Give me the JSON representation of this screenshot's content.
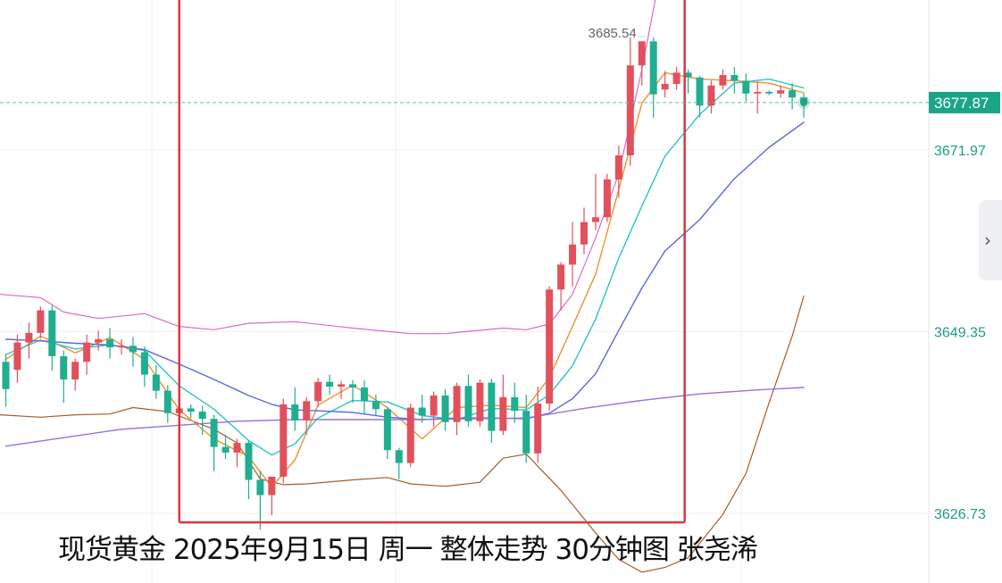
{
  "chart_data": {
    "type": "candlestick",
    "instrument": "现货黄金",
    "timeframe": "30分钟",
    "y_ticks": [
      "3671.97",
      "3649.35",
      "3626.73"
    ],
    "y_tick_values": [
      3671.97,
      3649.35,
      3626.73
    ],
    "current_price": "3677.87",
    "current_price_value": 3677.87,
    "high_annotation": "3685.54",
    "high_annotation_value": 3685.54,
    "ylim": [
      3620.0,
      3692.0
    ],
    "candles": [
      [
        3645.6,
        3646.5,
        3640.0,
        3642.2
      ],
      [
        3644.6,
        3649.0,
        3643.0,
        3648.0
      ],
      [
        3648.0,
        3650.5,
        3646.0,
        3649.2
      ],
      [
        3649.2,
        3652.5,
        3648.5,
        3652.0
      ],
      [
        3652.0,
        3652.6,
        3644.5,
        3646.3
      ],
      [
        3646.3,
        3647.0,
        3640.5,
        3643.4
      ],
      [
        3643.4,
        3646.0,
        3642.0,
        3645.6
      ],
      [
        3645.6,
        3649.0,
        3644.0,
        3648.0
      ],
      [
        3648.0,
        3649.5,
        3647.0,
        3648.4
      ],
      [
        3648.4,
        3649.8,
        3646.0,
        3647.4
      ],
      [
        3647.4,
        3648.4,
        3646.5,
        3647.6
      ],
      [
        3647.6,
        3648.7,
        3645.0,
        3646.8
      ],
      [
        3646.8,
        3647.5,
        3642.5,
        3644.0
      ],
      [
        3644.0,
        3645.2,
        3641.0,
        3642.0
      ],
      [
        3642.0,
        3642.7,
        3638.0,
        3639.2
      ],
      [
        3639.2,
        3640.6,
        3638.0,
        3639.8
      ],
      [
        3639.8,
        3640.3,
        3638.6,
        3639.4
      ],
      [
        3639.4,
        3640.1,
        3636.5,
        3638.5
      ],
      [
        3638.5,
        3639.0,
        3632.0,
        3635.0
      ],
      [
        3635.0,
        3636.5,
        3633.5,
        3634.3
      ],
      [
        3634.3,
        3636.0,
        3632.5,
        3635.5
      ],
      [
        3635.5,
        3635.8,
        3628.5,
        3630.9
      ],
      [
        3630.9,
        3632.0,
        3624.7,
        3629.0
      ],
      [
        3629.0,
        3631.2,
        3626.5,
        3631.3
      ],
      [
        3631.3,
        3641.0,
        3630.5,
        3640.3
      ],
      [
        3640.3,
        3642.4,
        3637.0,
        3638.3
      ],
      [
        3638.3,
        3641.2,
        3636.5,
        3640.7
      ],
      [
        3640.7,
        3643.6,
        3640.0,
        3643.1
      ],
      [
        3643.1,
        3644.0,
        3641.5,
        3642.5
      ],
      [
        3642.5,
        3643.2,
        3641.0,
        3642.8
      ],
      [
        3642.8,
        3643.3,
        3640.5,
        3642.4
      ],
      [
        3642.4,
        3643.3,
        3639.0,
        3640.7
      ],
      [
        3640.7,
        3641.5,
        3639.0,
        3639.7
      ],
      [
        3639.7,
        3640.0,
        3633.5,
        3634.6
      ],
      [
        3634.6,
        3634.9,
        3631.0,
        3633.0
      ],
      [
        3633.0,
        3640.4,
        3632.5,
        3639.9
      ],
      [
        3639.9,
        3641.5,
        3638.0,
        3638.9
      ],
      [
        3638.9,
        3641.9,
        3637.5,
        3641.4
      ],
      [
        3641.4,
        3642.2,
        3637.0,
        3638.1
      ],
      [
        3638.1,
        3643.0,
        3636.5,
        3642.6
      ],
      [
        3642.6,
        3644.0,
        3637.5,
        3638.2
      ],
      [
        3638.2,
        3643.4,
        3637.5,
        3643.0
      ],
      [
        3643.0,
        3643.5,
        3635.5,
        3637.0
      ],
      [
        3637.0,
        3644.0,
        3636.5,
        3641.2
      ],
      [
        3641.2,
        3643.0,
        3638.0,
        3639.5
      ],
      [
        3639.5,
        3641.5,
        3633.0,
        3634.2
      ],
      [
        3634.2,
        3642.5,
        3633.0,
        3640.4
      ],
      [
        3640.4,
        3655.0,
        3639.5,
        3654.6
      ],
      [
        3654.6,
        3658.0,
        3652.0,
        3657.7
      ],
      [
        3657.7,
        3663.0,
        3655.0,
        3660.2
      ],
      [
        3660.2,
        3664.8,
        3659.0,
        3663.0
      ],
      [
        3663.0,
        3669.0,
        3662.0,
        3663.6
      ],
      [
        3663.6,
        3669.0,
        3663.0,
        3668.3
      ],
      [
        3668.3,
        3672.5,
        3666.0,
        3671.3
      ],
      [
        3671.3,
        3686.0,
        3670.0,
        3682.5
      ],
      [
        3682.5,
        3685.5,
        3680.0,
        3685.5
      ],
      [
        3685.5,
        3686.0,
        3676.0,
        3678.9
      ],
      [
        3679.5,
        3681.8,
        3678.5,
        3680.2
      ],
      [
        3680.2,
        3682.3,
        3679.5,
        3681.6
      ],
      [
        3681.6,
        3682.0,
        3679.0,
        3681.0
      ],
      [
        3681.0,
        3681.2,
        3676.0,
        3677.5
      ],
      [
        3677.5,
        3680.6,
        3676.5,
        3680.0
      ],
      [
        3680.0,
        3682.0,
        3679.5,
        3681.3
      ],
      [
        3681.3,
        3682.3,
        3679.0,
        3680.6
      ],
      [
        3680.6,
        3681.5,
        3678.0,
        3679.0
      ],
      [
        3679.0,
        3680.5,
        3676.5,
        3679.2
      ],
      [
        3679.2,
        3679.4,
        3678.8,
        3679.0
      ],
      [
        3679.0,
        3680.0,
        3678.5,
        3679.4
      ],
      [
        3679.4,
        3680.3,
        3677.0,
        3678.5
      ],
      [
        3678.5,
        3679.0,
        3676.0,
        3677.87
      ]
    ],
    "ma_series": [
      {
        "color": "#f0922e",
        "values": [
          [
            0,
            3645.9
          ],
          [
            3,
            3648.8
          ],
          [
            6,
            3646.7
          ],
          [
            9,
            3648.6
          ],
          [
            12,
            3645.9
          ],
          [
            15,
            3639.6
          ],
          [
            18,
            3636.0
          ],
          [
            21,
            3633.8
          ],
          [
            23,
            3630.0
          ],
          [
            25,
            3633.4
          ],
          [
            27,
            3640.2
          ],
          [
            30,
            3642.7
          ],
          [
            33,
            3639.9
          ],
          [
            36,
            3636.0
          ],
          [
            39,
            3639.9
          ],
          [
            42,
            3640.2
          ],
          [
            45,
            3639.9
          ],
          [
            47,
            3643.6
          ],
          [
            49,
            3650.0
          ],
          [
            51,
            3656.5
          ],
          [
            53,
            3667.0
          ],
          [
            55,
            3677.8
          ],
          [
            57,
            3681.6
          ],
          [
            60,
            3680.8
          ],
          [
            63,
            3680.6
          ],
          [
            66,
            3680.3
          ],
          [
            69,
            3679.1
          ]
        ]
      },
      {
        "color": "#2cc3c6",
        "values": [
          [
            0,
            3646.5
          ],
          [
            3,
            3648.3
          ],
          [
            6,
            3647.2
          ],
          [
            9,
            3647.7
          ],
          [
            12,
            3647.0
          ],
          [
            15,
            3642.6
          ],
          [
            18,
            3639.7
          ],
          [
            21,
            3635.8
          ],
          [
            23,
            3634.0
          ],
          [
            25,
            3635.4
          ],
          [
            27,
            3638.6
          ],
          [
            30,
            3640.8
          ],
          [
            33,
            3640.6
          ],
          [
            36,
            3638.9
          ],
          [
            39,
            3638.4
          ],
          [
            42,
            3639.8
          ],
          [
            45,
            3639.6
          ],
          [
            47,
            3641.5
          ],
          [
            49,
            3645.1
          ],
          [
            51,
            3650.9
          ],
          [
            53,
            3658.5
          ],
          [
            55,
            3665.0
          ],
          [
            57,
            3671.2
          ],
          [
            60,
            3676.4
          ],
          [
            63,
            3680.3
          ],
          [
            66,
            3680.8
          ],
          [
            69,
            3679.7
          ]
        ]
      },
      {
        "color": "#5968e0",
        "values": [
          [
            0,
            3648.4
          ],
          [
            3,
            3648.2
          ],
          [
            6,
            3647.9
          ],
          [
            9,
            3647.7
          ],
          [
            12,
            3647.1
          ],
          [
            15,
            3645.3
          ],
          [
            18,
            3643.4
          ],
          [
            21,
            3641.4
          ],
          [
            23,
            3640.3
          ],
          [
            25,
            3639.6
          ],
          [
            27,
            3639.5
          ],
          [
            30,
            3639.3
          ],
          [
            33,
            3638.7
          ],
          [
            36,
            3638.4
          ],
          [
            39,
            3638.6
          ],
          [
            42,
            3638.6
          ],
          [
            45,
            3638.5
          ],
          [
            47,
            3639.2
          ],
          [
            49,
            3641.0
          ],
          [
            51,
            3644.1
          ],
          [
            53,
            3649.5
          ],
          [
            55,
            3654.8
          ],
          [
            57,
            3659.4
          ],
          [
            60,
            3663.3
          ],
          [
            63,
            3668.4
          ],
          [
            66,
            3672.3
          ],
          [
            69,
            3675.4
          ]
        ]
      },
      {
        "color": "#9970d8",
        "values": [
          [
            0,
            3635.1
          ],
          [
            10,
            3637.2
          ],
          [
            20,
            3638.2
          ],
          [
            25,
            3638.4
          ],
          [
            35,
            3638.4
          ],
          [
            45,
            3638.6
          ],
          [
            50,
            3639.8
          ],
          [
            55,
            3640.8
          ],
          [
            60,
            3641.6
          ],
          [
            65,
            3642.1
          ],
          [
            69,
            3642.4
          ]
        ]
      }
    ],
    "bollinger": {
      "upper_color": "#db68c7",
      "lower_color": "#a45d2d",
      "upper": [
        [
          -0.5,
          3654.0
        ],
        [
          3,
          3653.6
        ],
        [
          5,
          3651.8
        ],
        [
          8,
          3651.0
        ],
        [
          12,
          3651.6
        ],
        [
          15,
          3650.0
        ],
        [
          18,
          3649.6
        ],
        [
          21,
          3650.4
        ],
        [
          25,
          3650.6
        ],
        [
          30,
          3649.8
        ],
        [
          35,
          3649.1
        ],
        [
          38,
          3649.1
        ],
        [
          40,
          3649.4
        ],
        [
          43,
          3649.8
        ],
        [
          45,
          3649.6
        ],
        [
          47,
          3650.3
        ],
        [
          49,
          3654.0
        ],
        [
          51,
          3661.0
        ],
        [
          53,
          3669.0
        ],
        [
          55,
          3682.0
        ],
        [
          57,
          3697.0
        ]
      ],
      "lower": [
        [
          -0.5,
          3639.0
        ],
        [
          3,
          3638.7
        ],
        [
          6,
          3639.0
        ],
        [
          9,
          3639.1
        ],
        [
          11,
          3639.9
        ],
        [
          14,
          3639.4
        ],
        [
          18,
          3637.2
        ],
        [
          20,
          3635.5
        ],
        [
          22,
          3631.0
        ],
        [
          24,
          3630.3
        ],
        [
          26,
          3630.4
        ],
        [
          30,
          3630.9
        ],
        [
          33,
          3631.2
        ],
        [
          35,
          3630.4
        ],
        [
          38,
          3630.1
        ],
        [
          41,
          3630.6
        ],
        [
          43,
          3633.6
        ],
        [
          45,
          3634.1
        ],
        [
          48,
          3629.6
        ],
        [
          51,
          3624.3
        ],
        [
          53,
          3621.0
        ],
        [
          55,
          3619.4
        ],
        [
          57,
          3620.0
        ],
        [
          59,
          3621.2
        ],
        [
          62,
          3626.6
        ],
        [
          64,
          3631.7
        ],
        [
          66,
          3640.5
        ],
        [
          68,
          3648.8
        ],
        [
          69,
          3653.8
        ]
      ]
    },
    "highlight_box": {
      "from_index": 15.0,
      "to_index": 58.7,
      "from_price": 3690.9,
      "to_price": 3625.6
    }
  },
  "caption": "现货黄金  2025年9月15日 周一 整体走势 30分钟图 张尧浠",
  "colors": {
    "up": "#e2505c",
    "down": "#1fae90",
    "price_line": "#5cc3a8",
    "price_label_bg": "#1aa588",
    "box": "#e0353c",
    "grid": "#eef0f2"
  },
  "icons": {
    "expand": "chevron-right-icon"
  }
}
